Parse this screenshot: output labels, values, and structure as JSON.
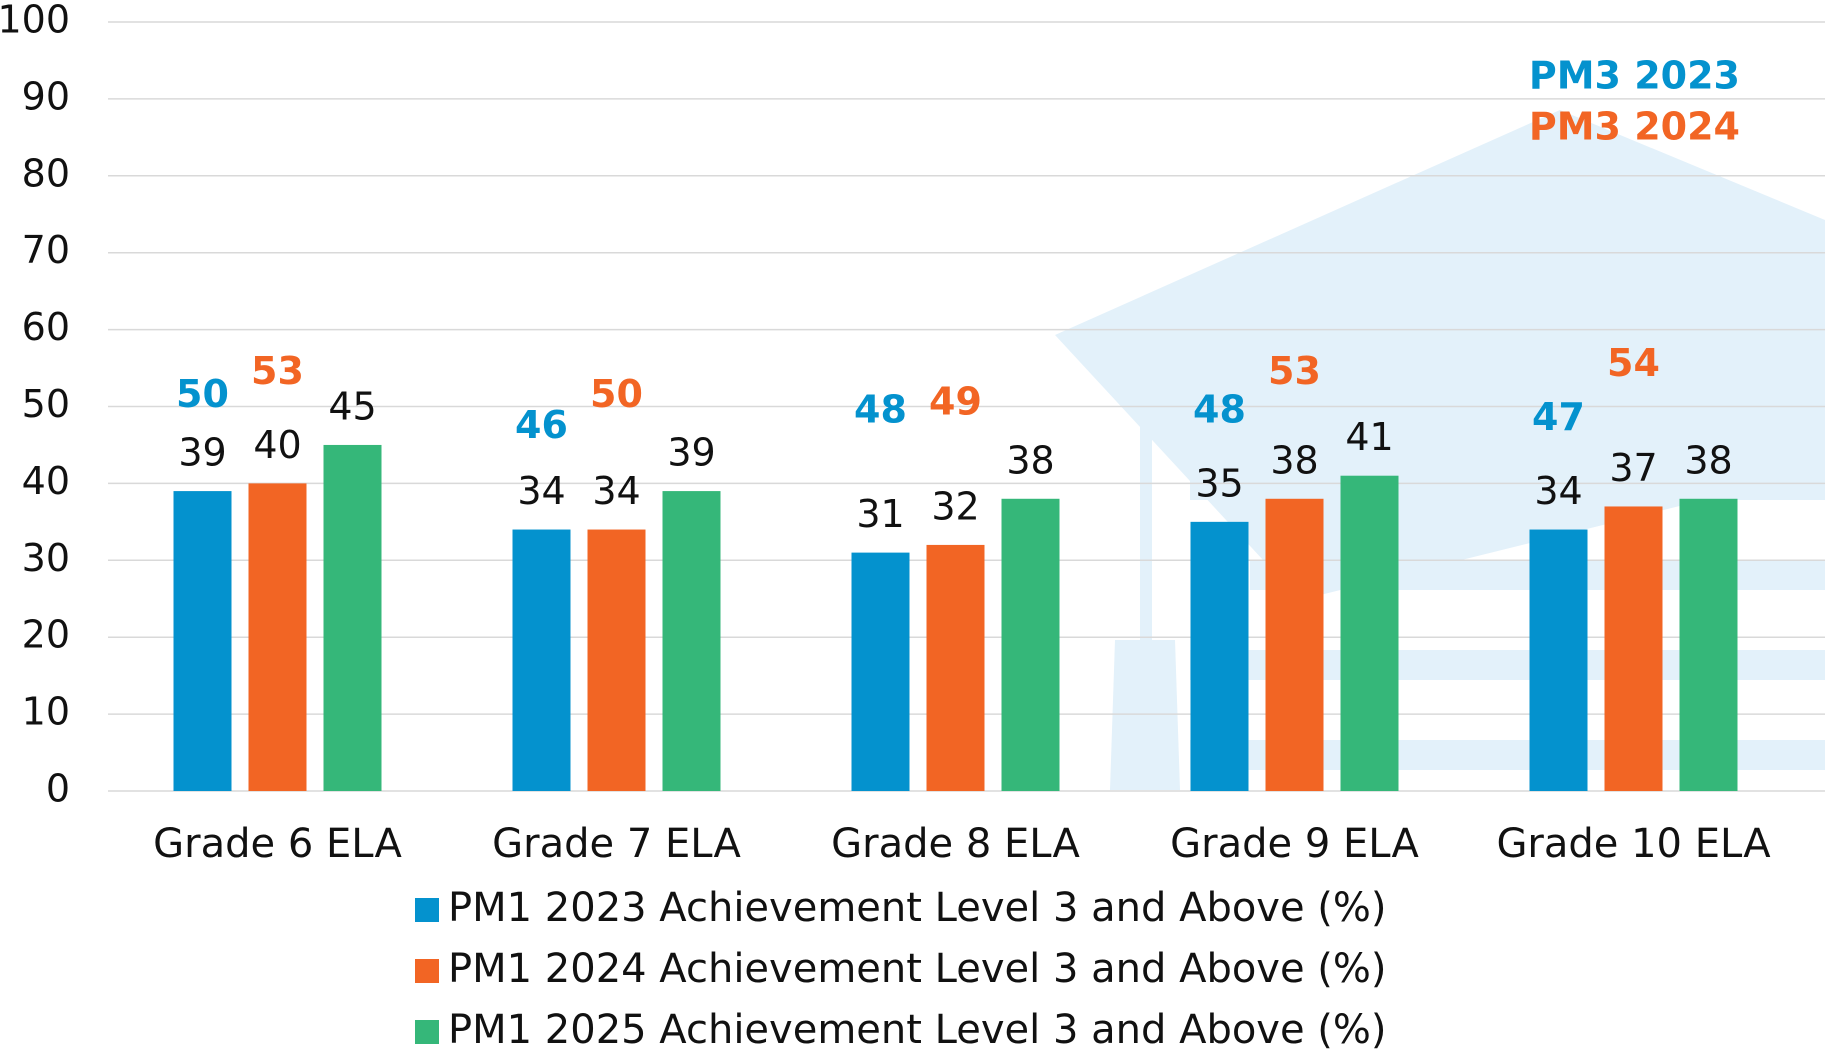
{
  "chart_data": {
    "type": "bar",
    "categories": [
      "Grade 6 ELA",
      "Grade 7 ELA",
      "Grade 8 ELA",
      "Grade 9 ELA",
      "Grade 10 ELA"
    ],
    "series": [
      {
        "name": "PM1 2023 Achievement Level 3 and Above (%)",
        "color": "#0492ce",
        "values": [
          39,
          34,
          31,
          35,
          34
        ]
      },
      {
        "name": "PM1 2024 Achievement Level 3 and Above (%)",
        "color": "#f26524",
        "values": [
          40,
          34,
          32,
          38,
          37
        ]
      },
      {
        "name": "PM1 2025 Achievement Level 3 and Above (%)",
        "color": "#35b779",
        "values": [
          45,
          39,
          38,
          41,
          38
        ]
      }
    ],
    "pm3_series": [
      {
        "name": "PM3 2023",
        "color": "#0492ce",
        "values": [
          50,
          46,
          48,
          48,
          47
        ]
      },
      {
        "name": "PM3 2024",
        "color": "#f26524",
        "values": [
          53,
          50,
          49,
          53,
          54
        ]
      }
    ],
    "ylim": [
      0,
      100
    ],
    "yticks": [
      0,
      10,
      20,
      30,
      40,
      50,
      60,
      70,
      80,
      90,
      100
    ],
    "grid": true
  }
}
